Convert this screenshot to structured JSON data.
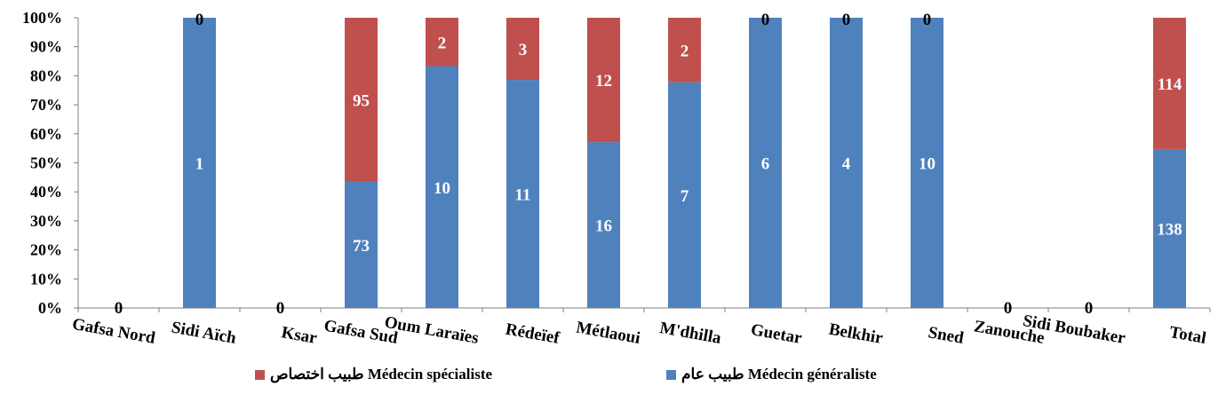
{
  "chart_data": {
    "type": "bar",
    "stacked": "percent",
    "categories": [
      "Gafsa Nord",
      "Sidi Aïch",
      "Ksar",
      "Gafsa Sud",
      "Oum Laraïes",
      "Rédeïef",
      "Métlaoui",
      "M'dhilla",
      "Guetar",
      "Belkhir",
      "Sned",
      "Zanouche",
      "Sidi Boubaker",
      "Total"
    ],
    "series": [
      {
        "name": "طبيب عام Médecin généraliste",
        "color": "#4f81bd",
        "values": [
          0,
          1,
          0,
          73,
          10,
          11,
          16,
          7,
          6,
          4,
          10,
          0,
          0,
          138
        ]
      },
      {
        "name": "طبيب اختصاص Médecin spécialiste",
        "color": "#c0504d",
        "values": [
          0,
          0,
          0,
          95,
          2,
          3,
          12,
          2,
          0,
          0,
          0,
          0,
          0,
          114
        ]
      }
    ],
    "y_ticks": [
      "0%",
      "10%",
      "20%",
      "30%",
      "40%",
      "50%",
      "60%",
      "70%",
      "80%",
      "90%",
      "100%"
    ],
    "ylim": [
      0,
      100
    ],
    "data_labels": {
      "series_0": [
        "0",
        "1",
        "0",
        "73",
        "10",
        "11",
        "16",
        "7",
        "6",
        "4",
        "10",
        "0",
        "0",
        "138"
      ],
      "series_1": [
        "",
        "0",
        "",
        "95",
        "2",
        "3",
        "12",
        "2",
        "0",
        "0",
        "0",
        "",
        "",
        "114"
      ]
    },
    "legend_position": "bottom",
    "grid": false
  },
  "legend": {
    "specialist": "طبيب اختصاص Médecin spécialiste",
    "generalist": "طبيب عام Médecin généraliste"
  }
}
